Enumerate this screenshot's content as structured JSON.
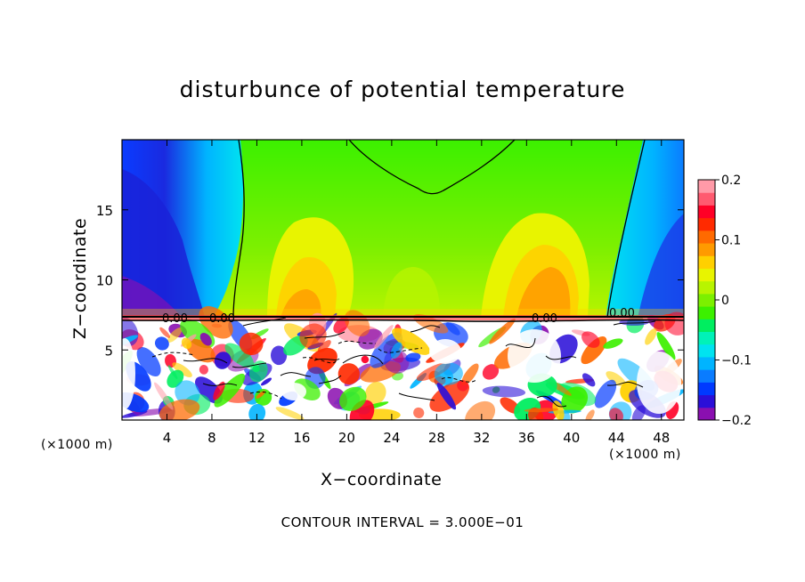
{
  "chart_data": {
    "type": "heatmap",
    "title": "disturbunce of potential temperature",
    "xlabel": "X−coordinate",
    "ylabel": "Z−coordinate",
    "x_unit": "(×1000 m)",
    "xlim": [
      0,
      50
    ],
    "ylim": [
      0,
      20
    ],
    "x_ticks": [
      4,
      8,
      12,
      16,
      20,
      24,
      28,
      32,
      36,
      40,
      44,
      48
    ],
    "y_ticks": [
      5,
      10,
      15
    ],
    "colorbar": {
      "range": [
        -0.2,
        0.2
      ],
      "tick_values": [
        -0.2,
        -0.1,
        0,
        0.1,
        0.2
      ],
      "tick_labels": [
        "−0.2",
        "−0.1",
        "0",
        "0.1",
        "0.2"
      ],
      "colors": [
        "#8a0fb0",
        "#2b0fd8",
        "#0039ff",
        "#0a7cff",
        "#00b4ff",
        "#00e3f0",
        "#00f2b8",
        "#00ee60",
        "#3cf000",
        "#7cf000",
        "#b8f400",
        "#e8f400",
        "#ffd000",
        "#ff9a00",
        "#ff6a00",
        "#ff2a00",
        "#ff0026",
        "#ff5a70",
        "#ff9aa8"
      ]
    },
    "contour_labels": [
      "0.00",
      "0.00",
      "0.00",
      "0.00"
    ],
    "footnote": "CONTOUR INTERVAL = 3.000E−01",
    "grid": false,
    "legend": "colorbar-right"
  }
}
